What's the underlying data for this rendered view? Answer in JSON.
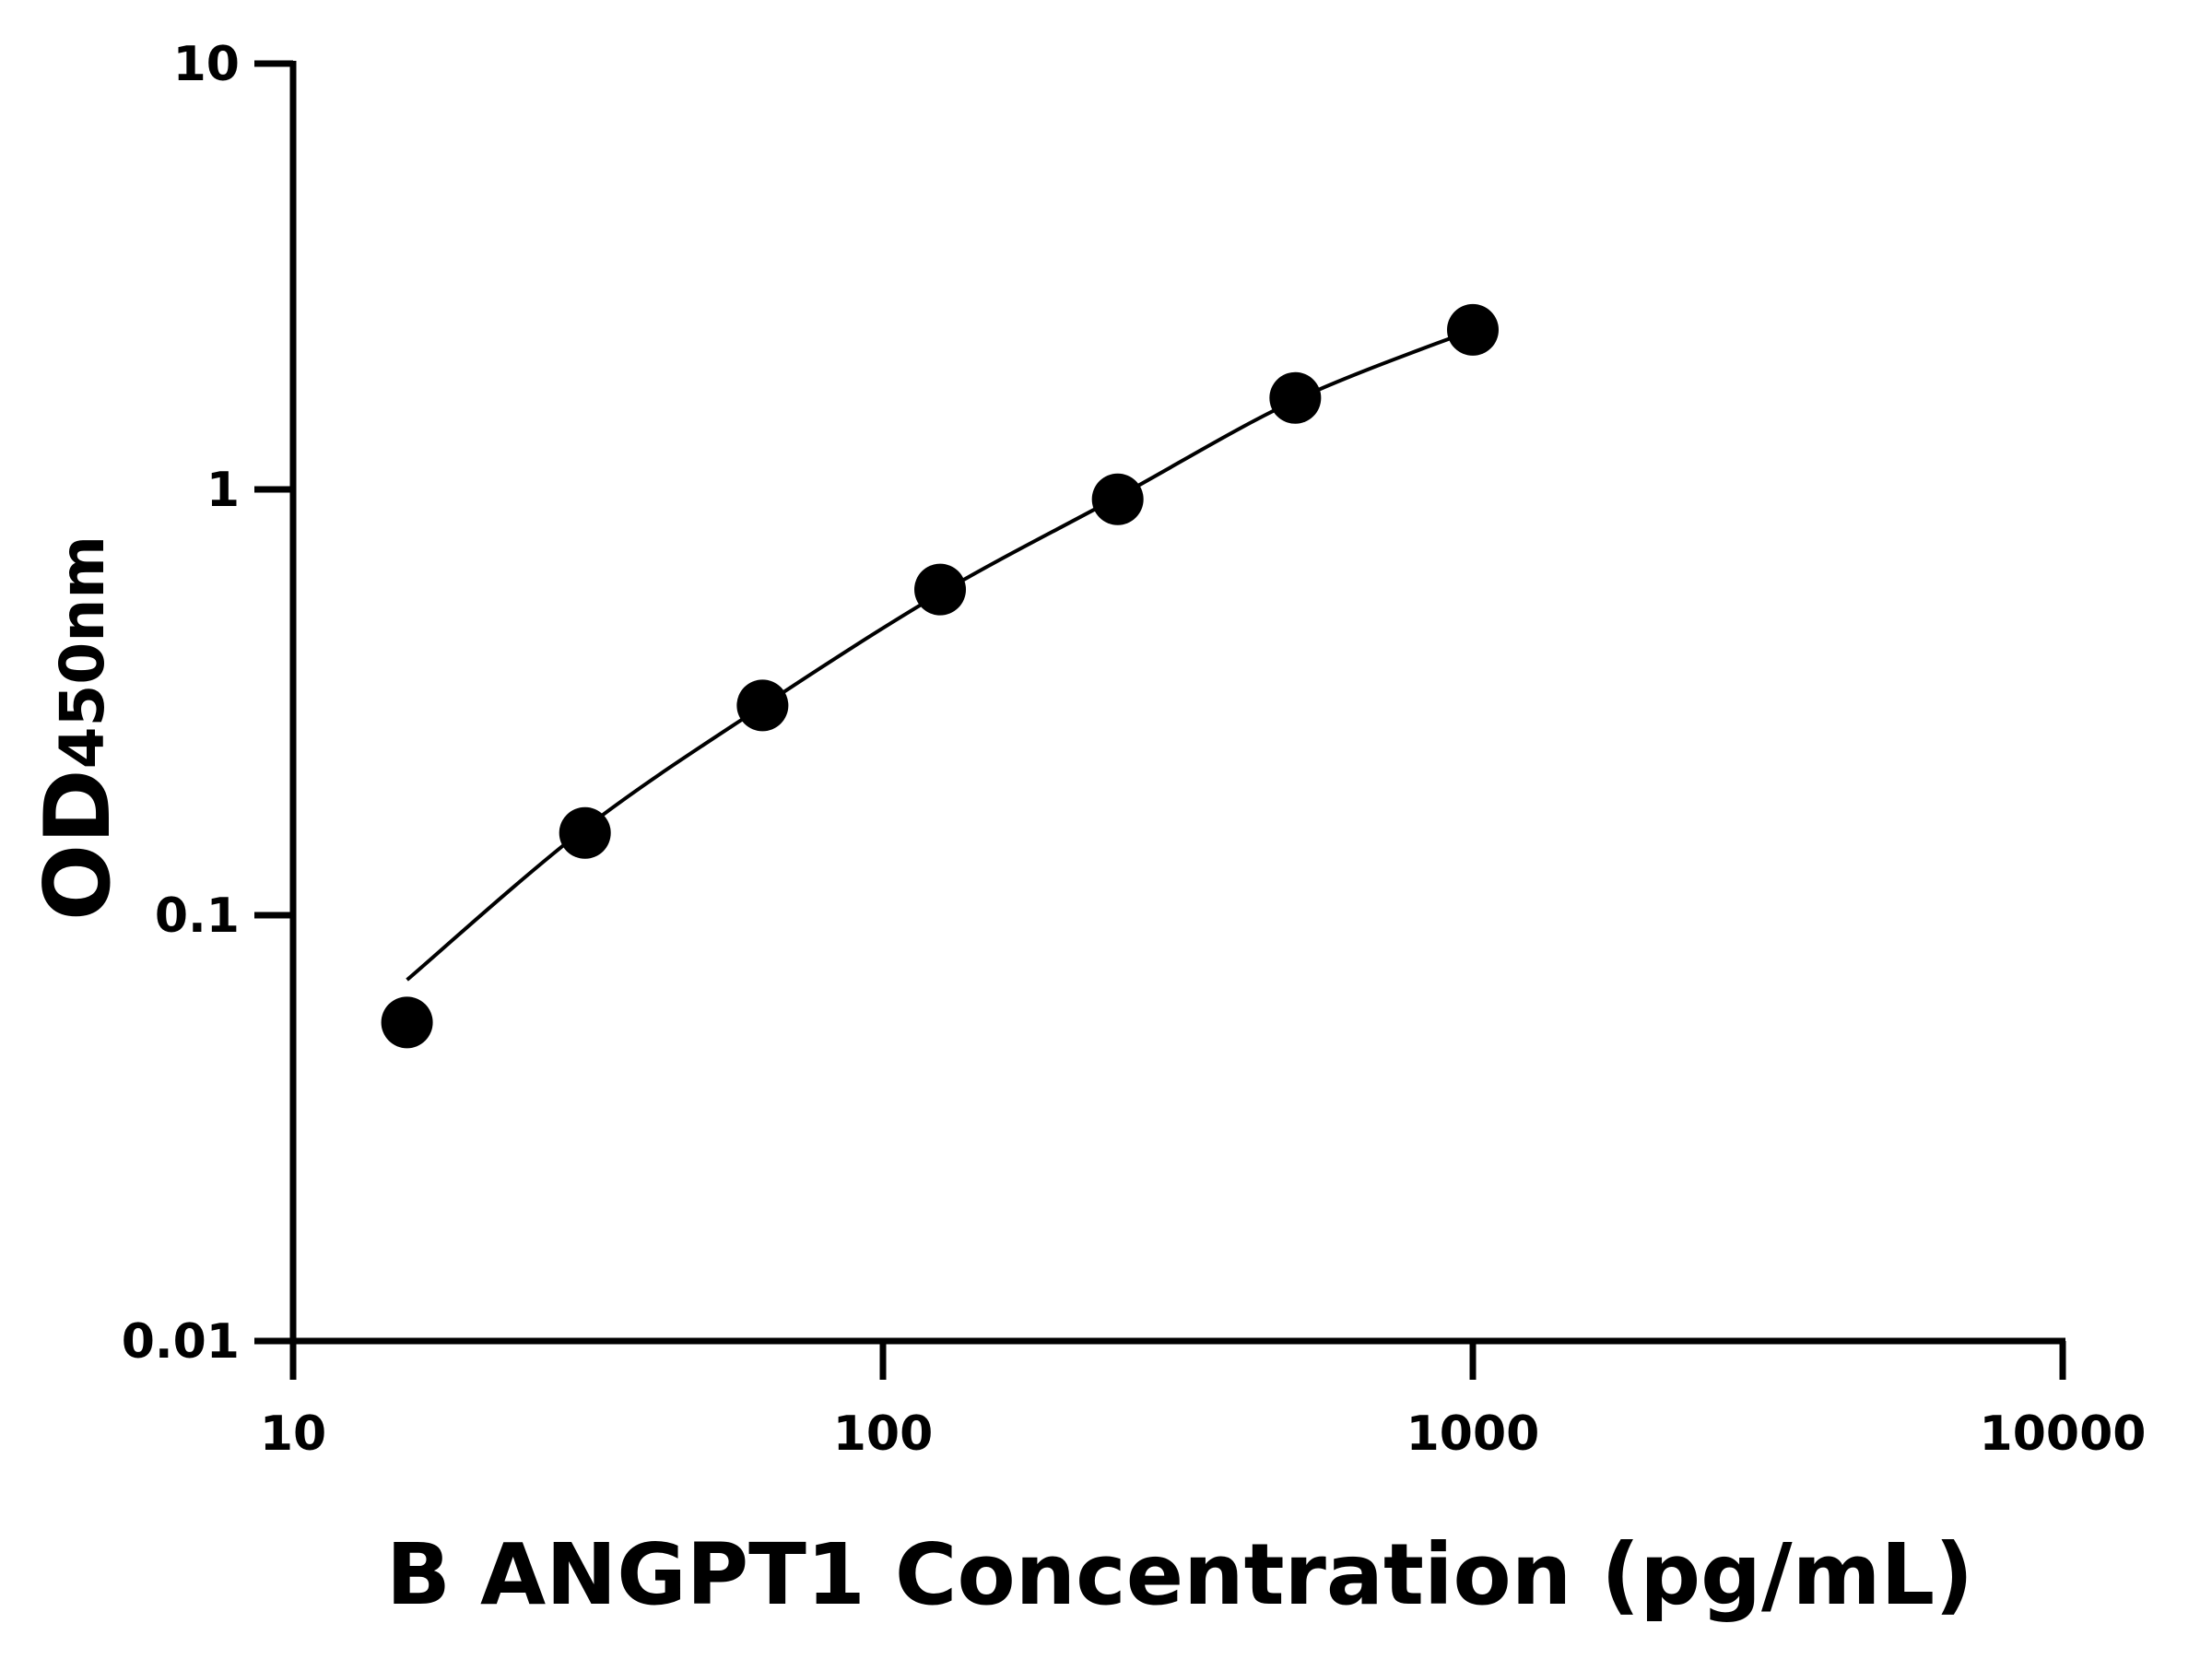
{
  "chart_data": {
    "type": "scatter",
    "x_label": "B ANGPT1 Concentration (pg/mL)",
    "y_label": "OD",
    "y_label_sub": "450nm",
    "x": [
      15.6,
      31.25,
      62.5,
      125,
      250,
      500,
      1000
    ],
    "series": [
      {
        "color": "#000000",
        "values": [
          0.056,
          0.156,
          0.311,
          0.582,
          0.948,
          1.64,
          2.37
        ]
      }
    ],
    "fit": {
      "color": "#000000",
      "x": [
        15.6,
        31.25,
        62.5,
        125,
        250,
        500,
        1000
      ],
      "values": [
        0.0705,
        0.16,
        0.31,
        0.57,
        0.96,
        1.62,
        2.37
      ]
    },
    "xlim": [
      10,
      10000
    ],
    "ylim": [
      0.01,
      10
    ],
    "xticks": [
      10,
      100,
      1000,
      10000
    ],
    "yticks": [
      0.01,
      0.1,
      1,
      10
    ],
    "xscale": "log",
    "yscale": "log",
    "grid": false
  }
}
